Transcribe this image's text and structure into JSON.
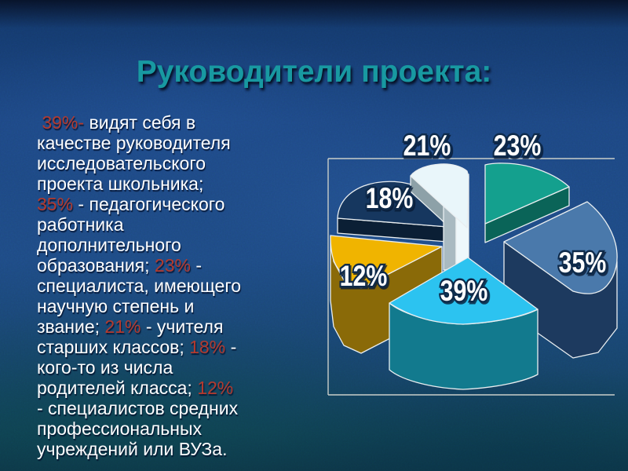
{
  "slide": {
    "title": "Руководители проекта:",
    "title_color": "#1899a1",
    "background_color": "#1d4783"
  },
  "body": {
    "text_color": "#ffffff",
    "accent_color": "#b43a2e",
    "lines": [
      [
        {
          "text": " 39%-",
          "red": true
        },
        {
          "text": " видят себя в",
          "red": false
        }
      ],
      [
        {
          "text": "качестве руководителя",
          "red": false
        }
      ],
      [
        {
          "text": "исследовательского",
          "red": false
        }
      ],
      [
        {
          "text": "проекта школьника;",
          "red": false
        }
      ],
      [
        {
          "text": "35%",
          "red": true
        },
        {
          "text": " - педагогического",
          "red": false
        }
      ],
      [
        {
          "text": "работника",
          "red": false
        }
      ],
      [
        {
          "text": "дополнительного",
          "red": false
        }
      ],
      [
        {
          "text": "образования; ",
          "red": false
        },
        {
          "text": "23%",
          "red": true
        },
        {
          "text": " -",
          "red": false
        }
      ],
      [
        {
          "text": "специалиста, имеющего",
          "red": false
        }
      ],
      [
        {
          "text": "научную степень и",
          "red": false
        }
      ],
      [
        {
          "text": "звание; ",
          "red": false
        },
        {
          "text": "21%",
          "red": true
        },
        {
          "text": " - учителя",
          "red": false
        }
      ],
      [
        {
          "text": "старших классов; ",
          "red": false
        },
        {
          "text": "18%",
          "red": true
        },
        {
          "text": " -",
          "red": false
        }
      ],
      [
        {
          "text": "кого-то из числа",
          "red": false
        }
      ],
      [
        {
          "text": "родителей класса; ",
          "red": false
        },
        {
          "text": "12%",
          "red": true
        }
      ],
      [
        {
          "text": "- специалистов средних",
          "red": false
        }
      ],
      [
        {
          "text": "профессиональных",
          "red": false
        }
      ],
      [
        {
          "text": "учреждений или ВУЗа.",
          "red": false
        }
      ]
    ]
  },
  "chart_data": {
    "type": "pie",
    "style": "3d-exploded",
    "unit": "%",
    "legend": "none",
    "labels_shown_on_chart": true,
    "frame_color": "#c9cec9",
    "slices": [
      {
        "label": "39%",
        "value": 39,
        "description": "видят себя в качестве руководителя исследовательского проекта школьника",
        "top_color": "#2cc3f0",
        "side_color": "#127a8e"
      },
      {
        "label": "35%",
        "value": 35,
        "description": "педагогического работника дополнительного образования",
        "top_color": "#4a79ab",
        "side_color": "#1d3a5f"
      },
      {
        "label": "23%",
        "value": 23,
        "description": "специалиста, имеющего научную степень и звание",
        "top_color": "#14a08e",
        "side_color": "#0a6458"
      },
      {
        "label": "21%",
        "value": 21,
        "description": "учителя старших классов",
        "top_color": "#e9f6fa",
        "side_color": "#8da1a8"
      },
      {
        "label": "18%",
        "value": 18,
        "description": "кого-то из числа родителей класса",
        "top_color": "#16375f",
        "side_color": "#0b1f35"
      },
      {
        "label": "12%",
        "value": 12,
        "description": "специалистов средних профессиональных учреждений или ВУЗа",
        "top_color": "#f0b400",
        "side_color": "#8a6a08"
      }
    ]
  }
}
